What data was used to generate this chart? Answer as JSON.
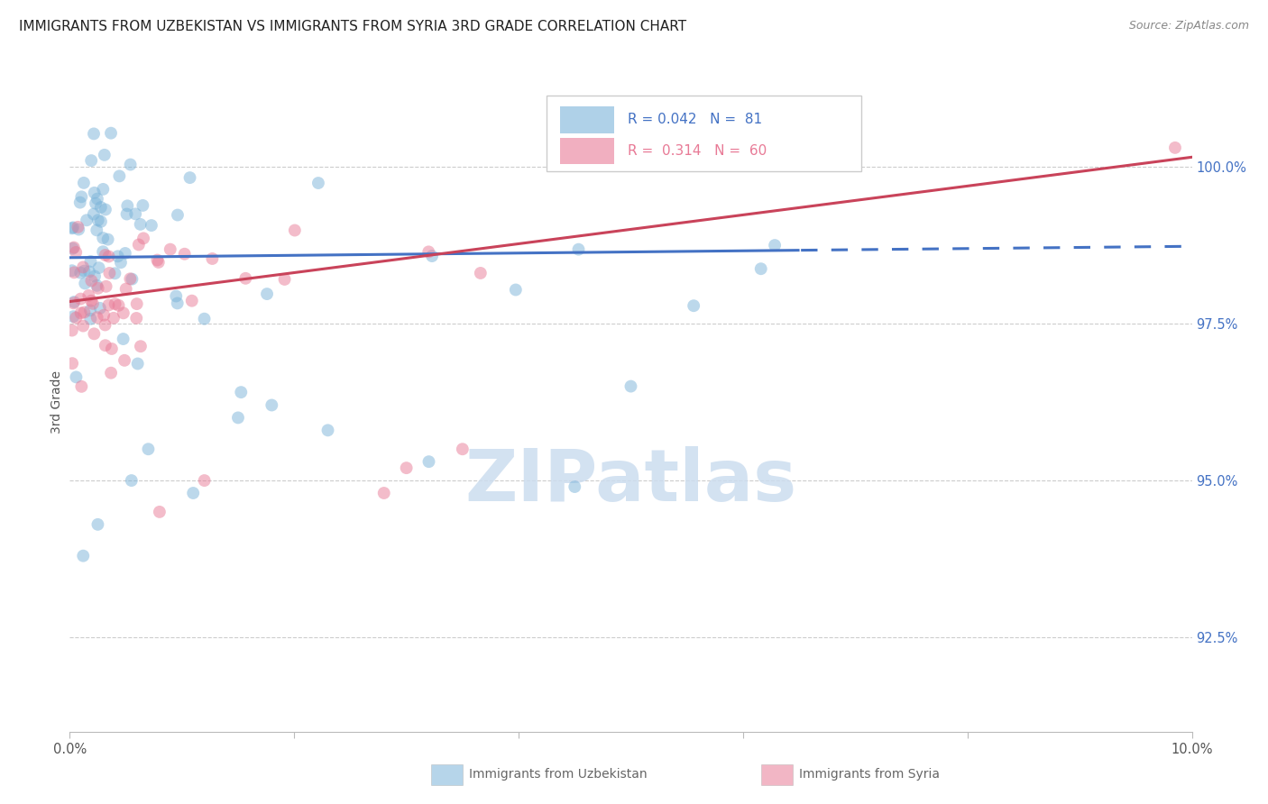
{
  "title": "IMMIGRANTS FROM UZBEKISTAN VS IMMIGRANTS FROM SYRIA 3RD GRADE CORRELATION CHART",
  "source": "Source: ZipAtlas.com",
  "ylabel": "3rd Grade",
  "ylabel_right_ticks": [
    92.5,
    95.0,
    97.5,
    100.0
  ],
  "xlim": [
    0.0,
    10.0
  ],
  "ylim": [
    91.0,
    101.5
  ],
  "uzbekistan_color": "#7ab3d9",
  "syria_color": "#e87a96",
  "trend_uzbekistan_color": "#4472c4",
  "trend_syria_color": "#c9435a",
  "watermark_color": "#ccddef",
  "legend_box_color": "#e8e8e8",
  "grid_color": "#cccccc",
  "axis_label_color": "#4472c4",
  "title_color": "#222222",
  "source_color": "#888888",
  "bottom_legend_color": "#666666"
}
